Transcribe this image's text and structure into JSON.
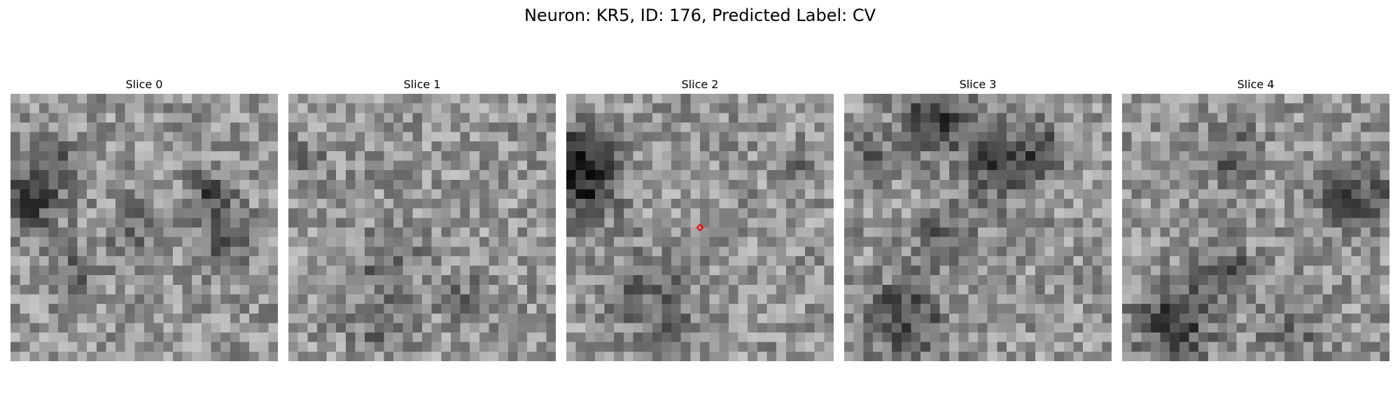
{
  "title": "Neuron: KR5, ID: 176, Predicted Label: CV",
  "colormap": "gray",
  "marker_color": "#ff0000",
  "grid_size": 28,
  "slices": [
    {
      "label": "Slice 0"
    },
    {
      "label": "Slice 1"
    },
    {
      "label": "Slice 2",
      "marker": true
    },
    {
      "label": "Slice 3"
    },
    {
      "label": "Slice 4"
    }
  ]
}
